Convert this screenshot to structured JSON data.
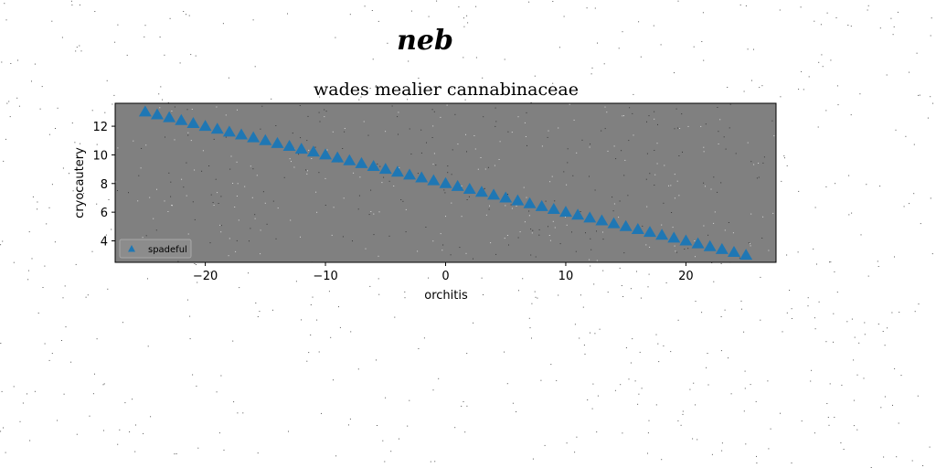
{
  "figure": {
    "suptitle": "neb"
  },
  "chart_data": {
    "type": "scatter",
    "title": "wades mealier cannabinaceae",
    "xlabel": "orchitis",
    "ylabel": "cryocautery",
    "xlim": [
      -27.5,
      27.5
    ],
    "ylim": [
      2.5,
      13.6
    ],
    "xticks": [
      -20,
      -10,
      0,
      10,
      20
    ],
    "xtick_labels": [
      "−20",
      "−10",
      "0",
      "10",
      "20"
    ],
    "yticks": [
      4,
      6,
      8,
      10,
      12
    ],
    "ytick_labels": [
      "4",
      "6",
      "8",
      "10",
      "12"
    ],
    "grid": false,
    "plot_background": "#808080",
    "legend": {
      "placement": "lower-left"
    },
    "series": [
      {
        "name": "spadeful",
        "marker": "triangle-up",
        "color": "#1f77b4",
        "x": [
          -25,
          -24,
          -23,
          -22,
          -21,
          -20,
          -19,
          -18,
          -17,
          -16,
          -15,
          -14,
          -13,
          -12,
          -11,
          -10,
          -9,
          -8,
          -7,
          -6,
          -5,
          -4,
          -3,
          -2,
          -1,
          0,
          1,
          2,
          3,
          4,
          5,
          6,
          7,
          8,
          9,
          10,
          11,
          12,
          13,
          14,
          15,
          16,
          17,
          18,
          19,
          20,
          21,
          22,
          23,
          24,
          25
        ],
        "y": [
          13.0,
          12.8,
          12.6,
          12.4,
          12.2,
          12.0,
          11.8,
          11.6,
          11.4,
          11.2,
          11.0,
          10.8,
          10.6,
          10.4,
          10.2,
          10.0,
          9.8,
          9.6,
          9.4,
          9.2,
          9.0,
          8.8,
          8.6,
          8.4,
          8.2,
          8.0,
          7.8,
          7.6,
          7.4,
          7.2,
          7.0,
          6.8,
          6.6,
          6.4,
          6.2,
          6.0,
          5.8,
          5.6,
          5.4,
          5.2,
          5.0,
          4.8,
          4.6,
          4.4,
          4.2,
          4.0,
          3.8,
          3.6,
          3.4,
          3.2,
          3.0
        ]
      }
    ]
  }
}
